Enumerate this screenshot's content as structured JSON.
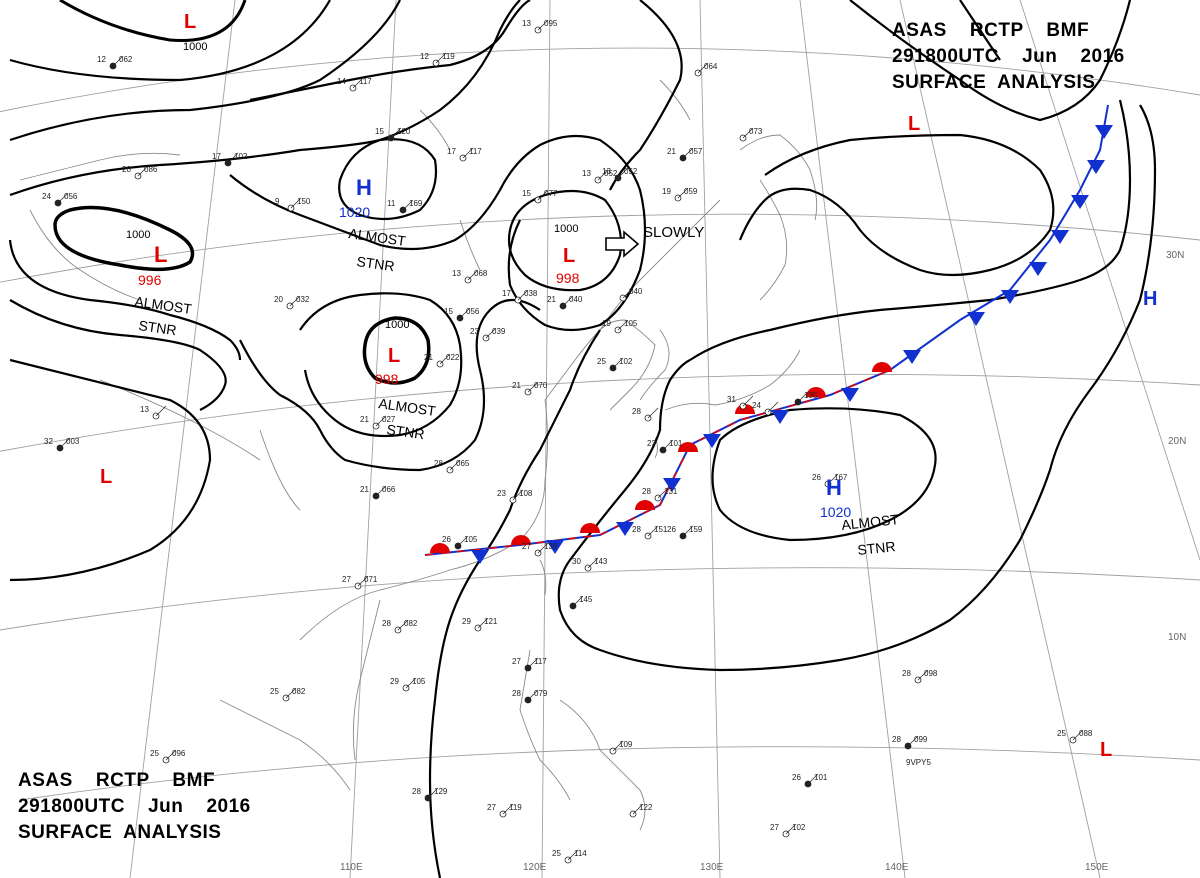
{
  "header": {
    "line1": "ASAS    RCTP    BMF",
    "line2": "291800UTC    Jun    2016",
    "line3": "SURFACE  ANALYSIS"
  },
  "colors": {
    "low": "#e00000",
    "high": "#1030d0",
    "isobar": "#000000",
    "warm_front": "#e00000",
    "cold_front": "#1030d0",
    "graticule": "#9a9a9a",
    "coast": "#8a8a8a"
  },
  "latitude_labels": [
    "30N",
    "20N",
    "10N"
  ],
  "longitude_labels": [
    "110E",
    "120E",
    "130E",
    "140E",
    "150E"
  ],
  "pressure_systems": [
    {
      "type": "L",
      "value": ""
    },
    {
      "type": "L",
      "value": "996"
    },
    {
      "type": "L",
      "value": "998"
    },
    {
      "type": "L",
      "value": "998"
    },
    {
      "type": "L",
      "value": ""
    },
    {
      "type": "L",
      "value": ""
    },
    {
      "type": "L",
      "value": ""
    },
    {
      "type": "H",
      "value": "1020"
    },
    {
      "type": "H",
      "value": "1020"
    },
    {
      "type": "H",
      "value": ""
    }
  ],
  "system_symbols": {
    "low": "L",
    "high": "H"
  },
  "isobar_labels": [
    "1000",
    "1000",
    "1000",
    "1000"
  ],
  "annotations": [
    {
      "text": "ALMOST",
      "text2": "STNR"
    },
    {
      "text": "ALMOST",
      "text2": "STNR"
    },
    {
      "text": "ALMOST",
      "text2": "STNR"
    },
    {
      "text": "ALMOST",
      "text2": "STNR"
    },
    {
      "text": "SLOWLY",
      "text2": ""
    }
  ],
  "station_plots": [
    {
      "t": "12",
      "p": "062"
    },
    {
      "t": "14",
      "p": "117"
    },
    {
      "t": "12",
      "p": "119"
    },
    {
      "t": "15",
      "p": "120"
    },
    {
      "t": "17",
      "p": "117"
    },
    {
      "t": "13",
      "p": "095"
    },
    {
      "t": "17",
      "p": "102"
    },
    {
      "t": "20",
      "p": "086"
    },
    {
      "t": "9",
      "p": "150"
    },
    {
      "t": "11",
      "p": "169"
    },
    {
      "t": "13",
      "p": "052"
    },
    {
      "t": "15",
      "p": "077"
    },
    {
      "t": "24",
      "p": "056"
    },
    {
      "t": "13",
      "p": "068"
    },
    {
      "t": "20",
      "p": "032"
    },
    {
      "t": "15",
      "p": "056"
    },
    {
      "t": "23",
      "p": "039"
    },
    {
      "t": "17",
      "p": "038"
    },
    {
      "t": "21",
      "p": "040"
    },
    {
      "t": "21",
      "p": "022"
    },
    {
      "t": "19",
      "p": "105"
    },
    {
      "t": "25",
      "p": "102"
    },
    {
      "t": "21",
      "p": "070"
    },
    {
      "t": "13",
      "p": ""
    },
    {
      "t": "32",
      "p": "003"
    },
    {
      "t": "21",
      "p": "027"
    },
    {
      "t": "28",
      "p": "065"
    },
    {
      "t": "21",
      "p": "066"
    },
    {
      "t": "23",
      "p": "108"
    },
    {
      "t": "28",
      "p": ""
    },
    {
      "t": "23",
      "p": "101"
    },
    {
      "t": "24",
      "p": ""
    },
    {
      "t": "31",
      "p": ""
    },
    {
      "t": "",
      "p": "135"
    },
    {
      "t": "26",
      "p": "167"
    },
    {
      "t": "28",
      "p": "131"
    },
    {
      "t": "26",
      "p": "105"
    },
    {
      "t": "27",
      "p": "138"
    },
    {
      "t": "28",
      "p": "151"
    },
    {
      "t": "26",
      "p": "159"
    },
    {
      "t": "30",
      "p": "143"
    },
    {
      "t": "27",
      "p": "071"
    },
    {
      "t": "",
      "p": "145"
    },
    {
      "t": "28",
      "p": "082"
    },
    {
      "t": "29",
      "p": "121"
    },
    {
      "t": "27",
      "p": "117"
    },
    {
      "t": "29",
      "p": "105"
    },
    {
      "t": "25",
      "p": "082"
    },
    {
      "t": "28",
      "p": "079"
    },
    {
      "t": "",
      "p": "109"
    },
    {
      "t": "28",
      "p": "098"
    },
    {
      "t": "28",
      "p": "099"
    },
    {
      "t": "25",
      "p": "088"
    },
    {
      "t": "25",
      "p": "096"
    },
    {
      "t": "28",
      "p": "129"
    },
    {
      "t": "27",
      "p": "119"
    },
    {
      "t": "",
      "p": "122"
    },
    {
      "t": "26",
      "p": "101"
    },
    {
      "t": "27",
      "p": "102"
    },
    {
      "t": "25",
      "p": "114"
    },
    {
      "t": "21",
      "p": "057"
    },
    {
      "t": "",
      "p": "073"
    },
    {
      "t": "",
      "p": "064"
    },
    {
      "t": "13",
      "p": "052"
    },
    {
      "t": "19",
      "p": "059"
    },
    {
      "t": "",
      "p": "040"
    }
  ],
  "station_ids": [
    "9VPY5"
  ]
}
